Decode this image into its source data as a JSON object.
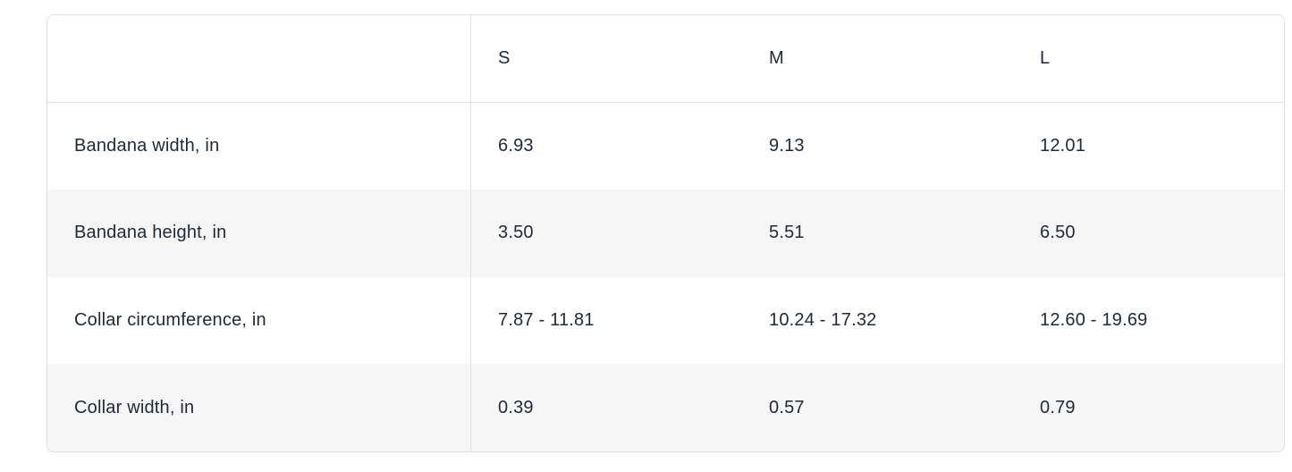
{
  "table": {
    "columns": [
      "",
      "S",
      "M",
      "L"
    ],
    "rows": [
      {
        "label": "Bandana width, in",
        "values": [
          "6.93",
          "9.13",
          "12.01"
        ]
      },
      {
        "label": "Bandana height, in",
        "values": [
          "3.50",
          "5.51",
          "6.50"
        ]
      },
      {
        "label": "Collar circumference, in",
        "values": [
          "7.87 - 11.81",
          "10.24 - 17.32",
          "12.60 - 19.69"
        ]
      },
      {
        "label": "Collar width, in",
        "values": [
          "0.39",
          "0.57",
          "0.79"
        ]
      }
    ]
  },
  "colors": {
    "border": "#e0e0e0",
    "stripe_background": "#f6f6f6",
    "text": "#212b36",
    "background": "#ffffff"
  }
}
